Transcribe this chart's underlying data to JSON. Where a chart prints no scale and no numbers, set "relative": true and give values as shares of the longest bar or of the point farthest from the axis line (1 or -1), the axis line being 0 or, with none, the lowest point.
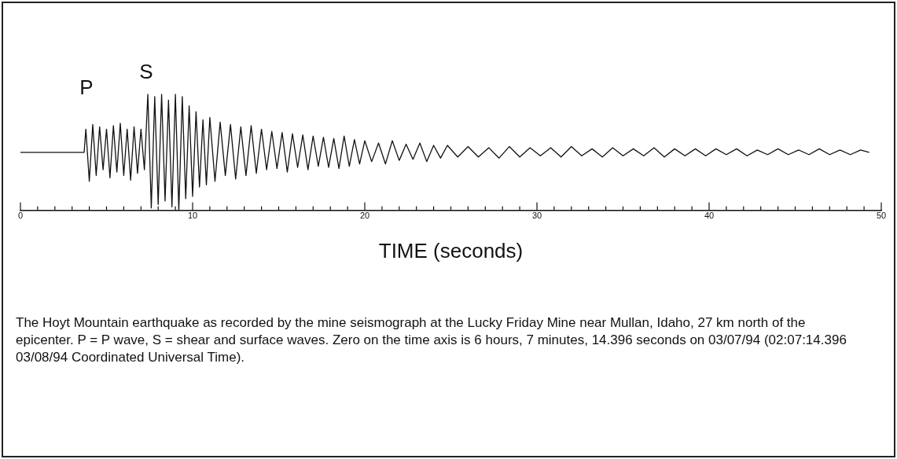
{
  "chart_data": {
    "type": "line",
    "relative": true,
    "xlabel": "TIME (seconds)",
    "color": "#111111",
    "xlim": [
      0,
      50
    ],
    "xticks": [
      0,
      {
        "value": 1,
        "label": null
      },
      {
        "value": 2,
        "label": null
      },
      {
        "value": 3,
        "label": null
      },
      {
        "value": 4,
        "label": null
      },
      {
        "value": 5,
        "label": null
      },
      {
        "value": 6,
        "label": null
      },
      {
        "value": 7,
        "label": null
      },
      {
        "value": 8,
        "label": null
      },
      {
        "value": 9,
        "label": null
      },
      10,
      {
        "value": 11,
        "label": null
      },
      {
        "value": 12,
        "label": null
      },
      {
        "value": 13,
        "label": null
      },
      {
        "value": 14,
        "label": null
      },
      {
        "value": 15,
        "label": null
      },
      {
        "value": 16,
        "label": null
      },
      {
        "value": 17,
        "label": null
      },
      {
        "value": 18,
        "label": null
      },
      {
        "value": 19,
        "label": null
      },
      20,
      {
        "value": 21,
        "label": null
      },
      {
        "value": 22,
        "label": null
      },
      {
        "value": 23,
        "label": null
      },
      {
        "value": 24,
        "label": null
      },
      {
        "value": 25,
        "label": null
      },
      {
        "value": 26,
        "label": null
      },
      {
        "value": 27,
        "label": null
      },
      {
        "value": 28,
        "label": null
      },
      {
        "value": 29,
        "label": null
      },
      30,
      {
        "value": 31,
        "label": null
      },
      {
        "value": 32,
        "label": null
      },
      {
        "value": 33,
        "label": null
      },
      {
        "value": 34,
        "label": null
      },
      {
        "value": 35,
        "label": null
      },
      {
        "value": 36,
        "label": null
      },
      {
        "value": 37,
        "label": null
      },
      {
        "value": 38,
        "label": null
      },
      {
        "value": 39,
        "label": null
      },
      40,
      {
        "value": 41,
        "label": null
      },
      {
        "value": 42,
        "label": null
      },
      {
        "value": 43,
        "label": null
      },
      {
        "value": 44,
        "label": null
      },
      {
        "value": 45,
        "label": null
      },
      {
        "value": 46,
        "label": null
      },
      {
        "value": 47,
        "label": null
      },
      {
        "value": 48,
        "label": null
      },
      {
        "value": 49,
        "label": null
      },
      50
    ],
    "tick_labels": "x",
    "grid": false,
    "legend": false,
    "marker": "none",
    "line_style": "solid",
    "x": [
      0,
      3.7,
      3.8,
      4.0,
      4.2,
      4.4,
      4.6,
      4.8,
      5.0,
      5.2,
      5.4,
      5.6,
      5.8,
      6.0,
      6.2,
      6.4,
      6.6,
      6.8,
      7.0,
      7.2,
      7.4,
      7.6,
      7.8,
      8.0,
      8.2,
      8.4,
      8.6,
      8.8,
      9.0,
      9.2,
      9.4,
      9.6,
      9.8,
      10.0,
      10.2,
      10.4,
      10.6,
      10.8,
      11.0,
      11.3,
      11.6,
      11.9,
      12.2,
      12.5,
      12.8,
      13.1,
      13.4,
      13.7,
      14.0,
      14.3,
      14.6,
      14.9,
      15.2,
      15.5,
      15.8,
      16.1,
      16.4,
      16.7,
      17.0,
      17.3,
      17.6,
      17.9,
      18.2,
      18.5,
      18.8,
      19.1,
      19.4,
      19.7,
      20.0,
      20.4,
      20.8,
      21.2,
      21.6,
      22.0,
      22.4,
      22.8,
      23.2,
      23.6,
      24.0,
      24.4,
      24.8,
      25.4,
      26,
      26.6,
      27.2,
      27.8,
      28.4,
      29,
      29.6,
      30.2,
      30.8,
      31.4,
      32,
      32.6,
      33.2,
      33.8,
      34.4,
      35,
      35.6,
      36.2,
      36.8,
      37.4,
      38,
      38.6,
      39.2,
      39.8,
      40.4,
      41,
      41.6,
      42.2,
      42.8,
      43.4,
      44,
      44.6,
      45.2,
      45.8,
      46.4,
      47,
      47.6,
      48.2,
      48.8,
      49.3
    ],
    "values": [
      0.5,
      0.5,
      0.7,
      0.25,
      0.74,
      0.3,
      0.72,
      0.35,
      0.7,
      0.28,
      0.73,
      0.33,
      0.75,
      0.3,
      0.7,
      0.26,
      0.72,
      0.32,
      0.7,
      0.35,
      1,
      0.02,
      0.98,
      0.05,
      1,
      0.08,
      0.95,
      0.03,
      1,
      0,
      0.98,
      0.1,
      0.9,
      0.12,
      0.85,
      0.2,
      0.78,
      0.22,
      0.8,
      0.25,
      0.76,
      0.3,
      0.74,
      0.27,
      0.72,
      0.3,
      0.73,
      0.32,
      0.7,
      0.35,
      0.68,
      0.36,
      0.67,
      0.33,
      0.66,
      0.37,
      0.65,
      0.35,
      0.64,
      0.38,
      0.63,
      0.37,
      0.62,
      0.36,
      0.64,
      0.38,
      0.61,
      0.4,
      0.6,
      0.42,
      0.58,
      0.4,
      0.6,
      0.43,
      0.57,
      0.44,
      0.58,
      0.42,
      0.56,
      0.45,
      0.56,
      0.46,
      0.55,
      0.46,
      0.54,
      0.45,
      0.55,
      0.46,
      0.54,
      0.47,
      0.54,
      0.46,
      0.55,
      0.47,
      0.53,
      0.46,
      0.54,
      0.47,
      0.53,
      0.47,
      0.54,
      0.46,
      0.53,
      0.47,
      0.53,
      0.47,
      0.53,
      0.48,
      0.53,
      0.47,
      0.52,
      0.48,
      0.53,
      0.48,
      0.52,
      0.48,
      0.53,
      0.48,
      0.52,
      0.48,
      0.52,
      0.5
    ],
    "annotations": [
      "P",
      "S",
      "The Hoyt Mountain earthquake as recorded by the mine seismograph at the Lucky Friday Mine near Mullan, Idaho, 27 km north of the epicenter.  P = P wave, S = shear and surface waves. Zero on the time axis is 6 hours, 7 minutes, 14.396 seconds on 03/07/94 (02:07:14.396 03/08/94 Coordinated Universal Time)."
    ]
  }
}
